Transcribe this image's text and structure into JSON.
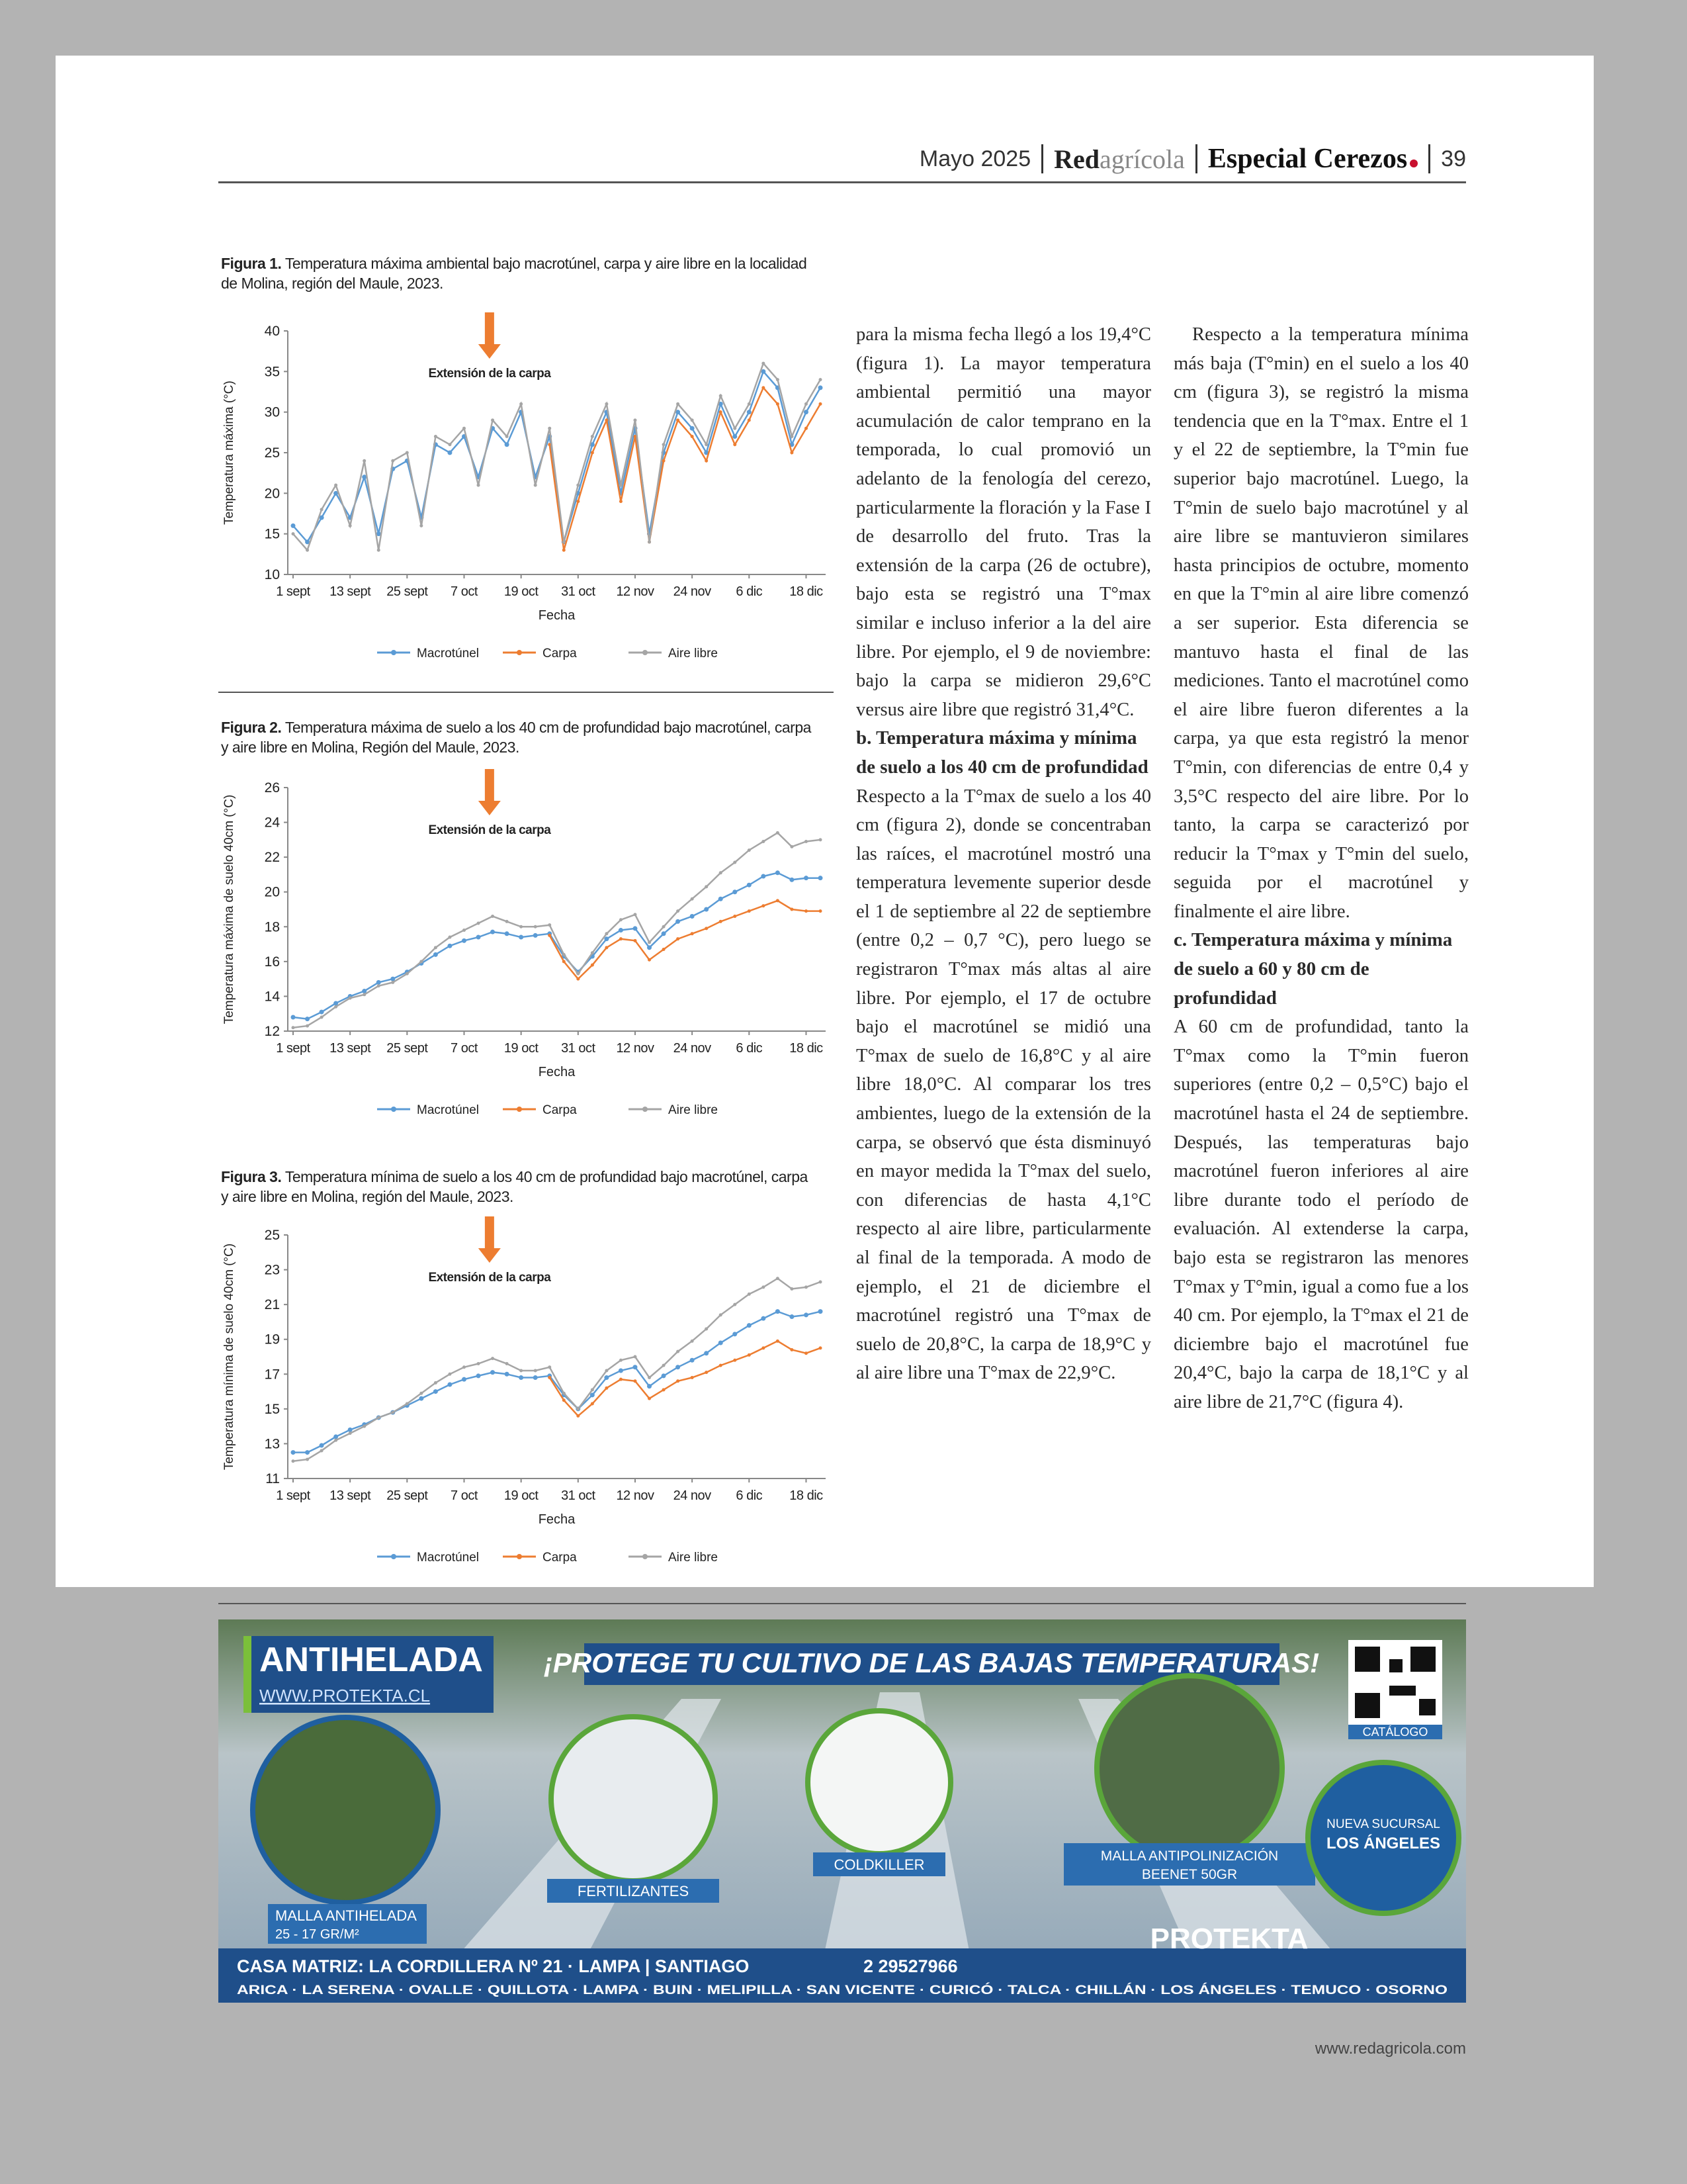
{
  "header": {
    "date": "Mayo 2025",
    "brand_a": "Red",
    "brand_b": "agrícola",
    "section": "Especial Cerezos",
    "page": "39"
  },
  "figures": [
    {
      "label": "Figura 1.",
      "caption": "Temperatura máxima ambiental bajo macrotúnel, carpa y aire libre en la localidad de Molina, región del Maule, 2023."
    },
    {
      "label": "Figura 2.",
      "caption": "Temperatura máxima de suelo a los 40 cm de profundidad bajo macrotúnel, carpa y aire libre en Molina, Región del Maule, 2023."
    },
    {
      "label": "Figura 3.",
      "caption": "Temperatura mínima de suelo a los 40 cm de profundidad bajo macrotúnel, carpa y aire libre en Molina, región del Maule, 2023."
    }
  ],
  "chart_data": [
    {
      "type": "line",
      "y_label": "Temperatura máxima (°C)",
      "x_label": "Fecha",
      "annotation": "Extensión de la carpa",
      "grid": false,
      "categories": [
        "1 sept",
        null,
        null,
        null,
        "13 sept",
        null,
        null,
        null,
        "25 sept",
        null,
        null,
        null,
        "7 oct",
        null,
        null,
        null,
        "19 oct",
        null,
        null,
        null,
        "31 oct",
        null,
        null,
        null,
        "12 nov",
        null,
        null,
        null,
        "24 nov",
        null,
        null,
        null,
        "6 dic",
        null,
        null,
        null,
        "18 dic",
        null
      ],
      "ylim": [
        10,
        40
      ],
      "yticks": [
        10,
        15,
        20,
        25,
        30,
        35,
        40
      ],
      "series": [
        {
          "name": "Macrotúnel",
          "color": "#5b9bd5",
          "values": [
            16,
            14,
            17,
            20,
            17,
            22,
            15,
            23,
            24,
            17,
            26,
            25,
            27,
            22,
            28,
            26,
            30,
            22,
            27,
            14,
            20,
            26,
            30,
            20,
            28,
            15,
            25,
            30,
            28,
            25,
            31,
            27,
            30,
            35,
            33,
            26,
            30,
            33
          ]
        },
        {
          "name": "Carpa",
          "color": "#ed7d31",
          "values": [
            null,
            null,
            null,
            null,
            null,
            null,
            null,
            null,
            null,
            null,
            null,
            null,
            null,
            null,
            null,
            null,
            null,
            null,
            26,
            13,
            19,
            25,
            29,
            19,
            27,
            14,
            24,
            29,
            27,
            24,
            30,
            26,
            29,
            33,
            31,
            25,
            28,
            31
          ]
        },
        {
          "name": "Aire libre",
          "color": "#a5a5a5",
          "values": [
            15,
            13,
            18,
            21,
            16,
            24,
            13,
            24,
            25,
            16,
            27,
            26,
            28,
            21,
            29,
            27,
            31,
            21,
            28,
            14,
            21,
            27,
            31,
            21,
            29,
            14,
            26,
            31,
            29,
            26,
            32,
            28,
            31,
            36,
            34,
            27,
            31,
            34
          ]
        }
      ]
    },
    {
      "type": "line",
      "y_label": "Temperatura máxima de suelo 40cm (°C)",
      "x_label": "Fecha",
      "annotation": "Extensión de la carpa",
      "grid": false,
      "categories": [
        "1 sept",
        null,
        null,
        null,
        "13 sept",
        null,
        null,
        null,
        "25 sept",
        null,
        null,
        null,
        "7 oct",
        null,
        null,
        null,
        "19 oct",
        null,
        null,
        null,
        "31 oct",
        null,
        null,
        null,
        "12 nov",
        null,
        null,
        null,
        "24 nov",
        null,
        null,
        null,
        "6 dic",
        null,
        null,
        null,
        "18 dic",
        null
      ],
      "ylim": [
        12,
        26
      ],
      "yticks": [
        12,
        14,
        16,
        18,
        20,
        22,
        24,
        26
      ],
      "series": [
        {
          "name": "Macrotúnel",
          "color": "#5b9bd5",
          "values": [
            12.8,
            12.7,
            13.1,
            13.6,
            14.0,
            14.3,
            14.8,
            15.0,
            15.4,
            15.9,
            16.4,
            16.9,
            17.2,
            17.4,
            17.7,
            17.6,
            17.4,
            17.5,
            17.6,
            16.3,
            15.4,
            16.3,
            17.3,
            17.8,
            17.9,
            16.8,
            17.6,
            18.3,
            18.6,
            19.0,
            19.6,
            20.0,
            20.4,
            20.9,
            21.1,
            20.7,
            20.8,
            20.8
          ]
        },
        {
          "name": "Carpa",
          "color": "#ed7d31",
          "values": [
            null,
            null,
            null,
            null,
            null,
            null,
            null,
            null,
            null,
            null,
            null,
            null,
            null,
            null,
            null,
            null,
            null,
            null,
            17.5,
            16.0,
            15.0,
            15.8,
            16.8,
            17.3,
            17.2,
            16.1,
            16.7,
            17.3,
            17.6,
            17.9,
            18.3,
            18.6,
            18.9,
            19.2,
            19.5,
            19.0,
            18.9,
            18.9
          ]
        },
        {
          "name": "Aire libre",
          "color": "#a5a5a5",
          "values": [
            12.2,
            12.3,
            12.8,
            13.4,
            13.9,
            14.1,
            14.6,
            14.8,
            15.3,
            16.0,
            16.8,
            17.4,
            17.8,
            18.2,
            18.6,
            18.3,
            18.0,
            18.0,
            18.1,
            16.4,
            15.3,
            16.5,
            17.6,
            18.4,
            18.7,
            17.1,
            18.0,
            18.9,
            19.6,
            20.3,
            21.1,
            21.7,
            22.4,
            22.9,
            23.4,
            22.6,
            22.9,
            23.0
          ]
        }
      ]
    },
    {
      "type": "line",
      "y_label": "Temperatura mínima de suelo 40cm (°C)",
      "x_label": "Fecha",
      "annotation": "Extensión de la carpa",
      "grid": false,
      "categories": [
        "1 sept",
        null,
        null,
        null,
        "13 sept",
        null,
        null,
        null,
        "25 sept",
        null,
        null,
        null,
        "7 oct",
        null,
        null,
        null,
        "19 oct",
        null,
        null,
        null,
        "31 oct",
        null,
        null,
        null,
        "12 nov",
        null,
        null,
        null,
        "24 nov",
        null,
        null,
        null,
        "6 dic",
        null,
        null,
        null,
        "18 dic",
        null
      ],
      "ylim": [
        11,
        25
      ],
      "yticks": [
        11,
        13,
        15,
        17,
        19,
        21,
        23,
        25
      ],
      "series": [
        {
          "name": "Macrotúnel",
          "color": "#5b9bd5",
          "values": [
            12.5,
            12.5,
            12.9,
            13.4,
            13.8,
            14.1,
            14.5,
            14.8,
            15.2,
            15.6,
            16.0,
            16.4,
            16.7,
            16.9,
            17.1,
            17.0,
            16.8,
            16.8,
            16.9,
            15.8,
            15.0,
            15.8,
            16.8,
            17.2,
            17.4,
            16.3,
            16.9,
            17.4,
            17.8,
            18.2,
            18.8,
            19.3,
            19.8,
            20.2,
            20.6,
            20.3,
            20.4,
            20.6
          ]
        },
        {
          "name": "Carpa",
          "color": "#ed7d31",
          "values": [
            null,
            null,
            null,
            null,
            null,
            null,
            null,
            null,
            null,
            null,
            null,
            null,
            null,
            null,
            null,
            null,
            null,
            null,
            16.8,
            15.5,
            14.6,
            15.3,
            16.2,
            16.7,
            16.6,
            15.6,
            16.1,
            16.6,
            16.8,
            17.1,
            17.5,
            17.8,
            18.1,
            18.5,
            18.9,
            18.4,
            18.2,
            18.5
          ]
        },
        {
          "name": "Aire libre",
          "color": "#a5a5a5",
          "values": [
            12.0,
            12.1,
            12.6,
            13.2,
            13.6,
            14.0,
            14.5,
            14.8,
            15.3,
            15.9,
            16.5,
            17.0,
            17.4,
            17.6,
            17.9,
            17.6,
            17.2,
            17.2,
            17.4,
            15.9,
            15.0,
            16.1,
            17.2,
            17.8,
            18.0,
            16.8,
            17.5,
            18.3,
            18.9,
            19.6,
            20.4,
            21.0,
            21.6,
            22.0,
            22.5,
            21.9,
            22.0,
            22.3
          ]
        }
      ]
    }
  ],
  "columns": [
    {
      "p1": "para la misma fecha llegó a los 19,4°C (figura 1). La mayor temperatura ambiental permitió una mayor acumulación de calor temprano en la temporada, lo cual promovió un adelanto de la fenología del cerezo, particularmente la floración y la Fase I de desarrollo del fruto. Tras la extensión de la carpa (26 de octubre), bajo esta se registró una T°max similar e incluso inferior a la del aire libre. Por ejemplo, el 9 de noviembre: bajo la carpa se midieron 29,6°C versus aire libre que registró 31,4°C.",
      "heading": "b. Temperatura máxima y mínima de suelo a los 40 cm de profundidad",
      "p2": "Respecto a la T°max de suelo a los 40 cm (figura 2), donde se concentraban las raíces, el macrotúnel mostró una temperatura levemente superior desde el 1 de septiembre al 22 de septiembre (entre 0,2 – 0,7 °C), pero luego se registraron T°max más altas al aire libre. Por ejemplo, el 17 de octubre bajo el macrotúnel se midió una T°max de suelo de 16,8°C y al aire libre 18,0°C. Al comparar los tres ambientes, luego de la extensión de la carpa, se observó que ésta disminuyó en mayor medida la T°max del suelo, con diferencias de hasta 4,1°C respecto al aire libre, particularmente al final de la temporada. A modo de ejemplo, el 21 de diciembre el macrotúnel registró una T°max de suelo de 20,8°C, la carpa de 18,9°C y al aire libre una T°max de 22,9°C."
    },
    {
      "p1": "Respecto a la temperatura mínima más baja (T°min) en el suelo a los 40 cm (figura 3), se registró la misma tendencia que en la T°max. Entre el 1 y el 22 de septiembre, la T°min fue superior bajo macrotúnel. Luego, la T°min de suelo bajo macrotúnel y al aire libre se mantuvieron similares hasta principios de octubre, momento en que la T°min al aire libre comenzó a ser superior. Esta diferencia se mantuvo hasta el final de las mediciones. Tanto el macrotúnel como el aire libre fueron diferentes a la carpa, ya que esta registró la menor T°min, con diferencias de entre 0,4 y 3,5°C respecto del aire libre. Por lo tanto, la carpa se caracterizó por reducir la T°max y T°min del suelo, seguida por el macrotúnel y finalmente el aire libre.",
      "heading": "c. Temperatura máxima y mínima de suelo a 60 y 80 cm de profundidad",
      "p2": "A 60 cm de profundidad, tanto la T°max como la T°min fueron superiores (entre 0,2 – 0,5°C) bajo el macrotúnel hasta el 24 de septiembre. Después, las temperaturas bajo macrotúnel fueron inferiores al aire libre durante todo el período de evaluación. Al extenderse la carpa, bajo esta se registraron las menores T°max y T°min, igual a como fue a los 40 cm. Por ejemplo, la T°max el 21 de diciembre bajo el macrotúnel fue 20,4°C, bajo la carpa de 18,1°C y al aire libre de 21,7°C (figura 4)."
    }
  ],
  "ad": {
    "product": "ANTIHELADA",
    "web": "WWW.PROTEKTA.CL",
    "slogan": "¡PROTEGE TU CULTIVO DE LAS BAJAS TEMPERATURAS!",
    "catalog": "CATÁLOGO",
    "item1": "MALLA ANTIHELADA",
    "item1_sub": "25 - 17 GR/M²",
    "item2": "FERTILIZANTES",
    "item3": "COLDKILLER",
    "item4": "MALLA ANTIPOLINIZACIÓN",
    "item4_sub": "BEENET 50GR",
    "branch_a": "NUEVA SUCURSAL",
    "branch_b": "LOS ÁNGELES",
    "brand": "PROTEKTA",
    "address": "CASA MATRIZ: LA CORDILLERA Nº 21 · LAMPA | SANTIAGO",
    "phone": "2 29527966",
    "cities": "ARICA · LA SERENA · OVALLE · QUILLOTA · LAMPA · BUIN · MELIPILLA · SAN VICENTE · CURICÓ · TALCA · CHILLÁN · LOS ÁNGELES · TEMUCO · OSORNO"
  },
  "footer": {
    "url": "www.redagricola.com"
  }
}
